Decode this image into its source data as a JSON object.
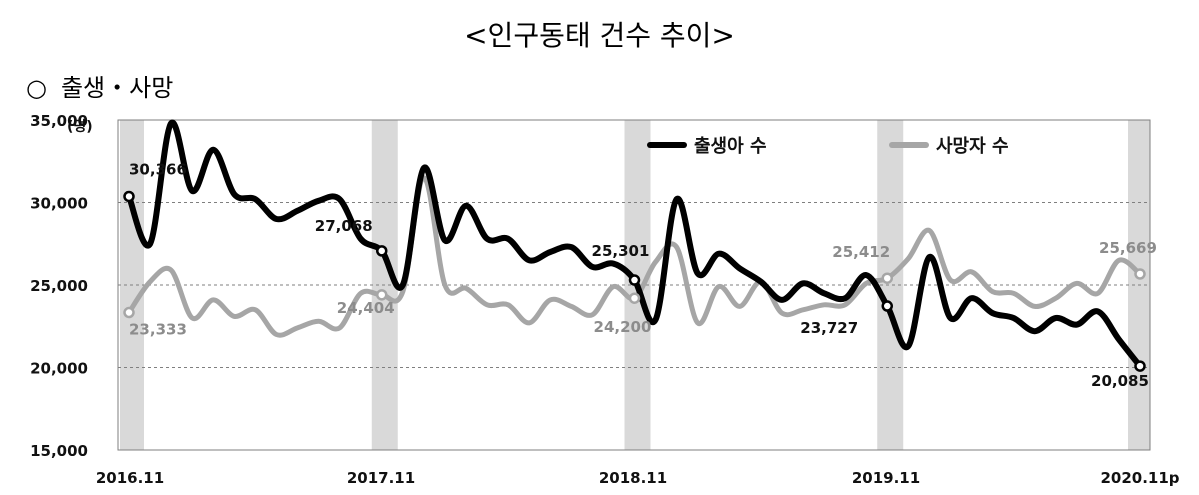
{
  "title": "<인구동태 건수 추이>",
  "subtitle": {
    "marker": "○",
    "text": "출생・사망"
  },
  "chart_data": {
    "type": "line",
    "ylabel": "(명)",
    "ylim": [
      15000,
      35000
    ],
    "yticks": [
      15000,
      20000,
      25000,
      30000,
      35000
    ],
    "ytick_labels": [
      "15,000",
      "20,000",
      "25,000",
      "30,000",
      "35,000"
    ],
    "xtick_labels": [
      "2016.11",
      "2017.11",
      "2018.11",
      "2019.11",
      "2020.11p"
    ],
    "grid": "horizontal dashed",
    "legend": "top-right",
    "highlight_bands": [
      "2016.11",
      "2017.11",
      "2018.11",
      "2019.11",
      "2020.11p"
    ],
    "series": [
      {
        "name": "출생아 수",
        "color": "#000000",
        "values": [
          30366,
          27500,
          34800,
          30700,
          33200,
          30500,
          30200,
          29000,
          29500,
          30100,
          30200,
          27800,
          27068,
          25000,
          32100,
          27700,
          29800,
          27800,
          27800,
          26500,
          27000,
          27300,
          26100,
          26300,
          25301,
          22900,
          30200,
          25700,
          26900,
          26000,
          25200,
          24100,
          25100,
          24500,
          24200,
          25600,
          23727,
          21300,
          26700,
          23000,
          24200,
          23300,
          23000,
          22200,
          23000,
          22600,
          23400,
          21700,
          20085
        ]
      },
      {
        "name": "사망자 수",
        "color": "#a6a6a6",
        "values": [
          23333,
          25200,
          25900,
          23000,
          24100,
          23100,
          23500,
          22000,
          22400,
          22800,
          22400,
          24500,
          24404,
          24600,
          31500,
          25000,
          24800,
          23800,
          23800,
          22700,
          24100,
          23700,
          23200,
          24900,
          24200,
          26400,
          27300,
          22700,
          24900,
          23700,
          25200,
          23300,
          23500,
          23800,
          23800,
          25100,
          25412,
          26600,
          28300,
          25300,
          25800,
          24600,
          24500,
          23700,
          24200,
          25100,
          24500,
          26500,
          25669
        ]
      }
    ],
    "annotations": [
      {
        "series": 0,
        "index": 0,
        "text": "30,366"
      },
      {
        "series": 0,
        "index": 12,
        "text": "27,068"
      },
      {
        "series": 0,
        "index": 24,
        "text": "25,301"
      },
      {
        "series": 0,
        "index": 36,
        "text": "23,727"
      },
      {
        "series": 0,
        "index": 48,
        "text": "20,085"
      },
      {
        "series": 1,
        "index": 0,
        "text": "23,333"
      },
      {
        "series": 1,
        "index": 12,
        "text": "24,404"
      },
      {
        "series": 1,
        "index": 24,
        "text": "24,200"
      },
      {
        "series": 1,
        "index": 36,
        "text": "25,412"
      },
      {
        "series": 1,
        "index": 48,
        "text": "25,669"
      }
    ]
  }
}
